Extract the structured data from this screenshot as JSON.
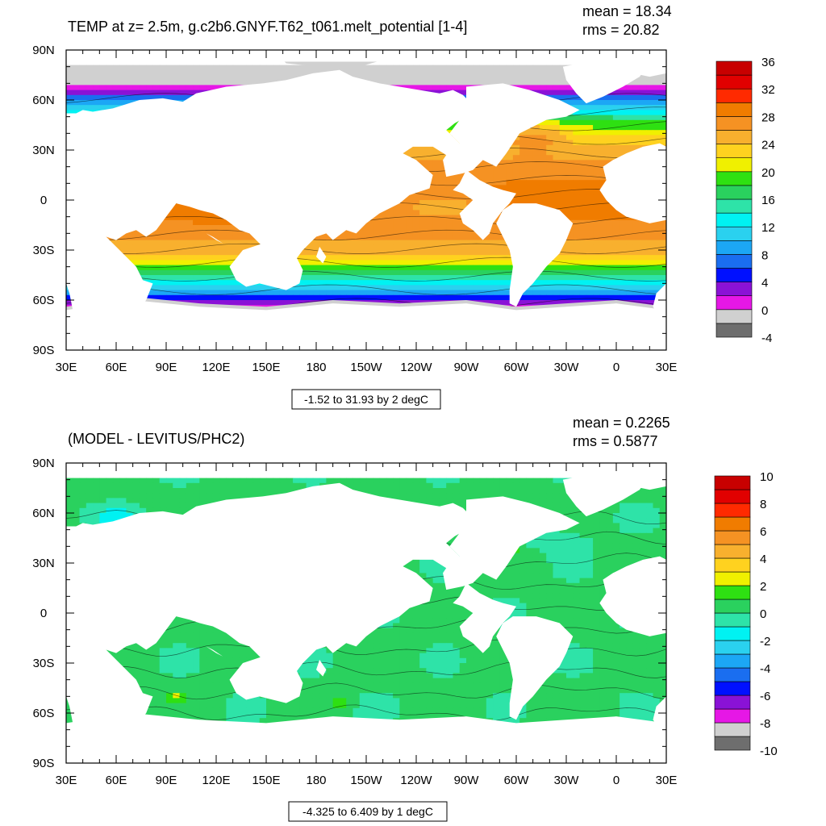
{
  "palette": [
    "#6e6e6e",
    "#d0d0d0",
    "#e617e6",
    "#8a12d6",
    "#0010ff",
    "#1a6ef0",
    "#1ca7f5",
    "#2ad1ef",
    "#00f2f2",
    "#2ee3a8",
    "#2ad15e",
    "#2ee012",
    "#f0f000",
    "#ffd21f",
    "#f8b02e",
    "#f59223",
    "#f07c00",
    "#ff2a00",
    "#e10000",
    "#c80000"
  ],
  "land_color": "#ffffff",
  "ice_color": "#d0d0d0",
  "chart_data": [
    {
      "type": "heatmap",
      "title": "TEMP at z=   2.5m, g.c2b6.GNYF.T62_t061.melt_potential [1-4]",
      "stats": {
        "mean": "mean = 18.34",
        "rms": "rms = 20.82"
      },
      "range_label": "-1.52 to 31.93 by 2 degC",
      "x_ticks": [
        "30E",
        "60E",
        "90E",
        "120E",
        "150E",
        "180",
        "150W",
        "120W",
        "90W",
        "60W",
        "30W",
        "0",
        "30E"
      ],
      "y_ticks": [
        "90N",
        "60N",
        "30N",
        "0",
        "30S",
        "60S",
        "90S"
      ],
      "lon_range": [
        30,
        390
      ],
      "lat_range": [
        -90,
        90
      ],
      "colorbar": {
        "min": -4,
        "max": 36,
        "step": 2,
        "labels": [
          "36",
          "32",
          "28",
          "24",
          "20",
          "16",
          "12",
          "8",
          "4",
          "0",
          "-4"
        ]
      },
      "value_range": [
        -1.52,
        31.93
      ]
    },
    {
      "type": "heatmap",
      "title": "(MODEL - LEVITUS/PHC2)",
      "stats": {
        "mean": "mean = 0.2265",
        "rms": "rms = 0.5877"
      },
      "range_label": "-4.325 to 6.409 by 1 degC",
      "x_ticks": [
        "30E",
        "60E",
        "90E",
        "120E",
        "150E",
        "180",
        "150W",
        "120W",
        "90W",
        "60W",
        "30W",
        "0",
        "30E"
      ],
      "y_ticks": [
        "90N",
        "60N",
        "30N",
        "0",
        "30S",
        "60S",
        "90S"
      ],
      "lon_range": [
        30,
        390
      ],
      "lat_range": [
        -90,
        90
      ],
      "colorbar": {
        "min": -10,
        "max": 10,
        "step": 1,
        "labels": [
          "10",
          "8",
          "6",
          "4",
          "2",
          "0",
          "-2",
          "-4",
          "-6",
          "-8",
          "-10"
        ]
      },
      "value_range": [
        -4.325,
        6.409
      ]
    }
  ]
}
